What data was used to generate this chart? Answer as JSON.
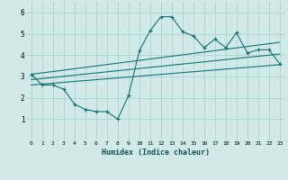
{
  "xlabel": "Humidex (Indice chaleur)",
  "ylabel": "",
  "xlim": [
    -0.5,
    23.5
  ],
  "ylim": [
    0.0,
    6.5
  ],
  "xticks": [
    0,
    1,
    2,
    3,
    4,
    5,
    6,
    7,
    8,
    9,
    10,
    11,
    12,
    13,
    14,
    15,
    16,
    17,
    18,
    19,
    20,
    21,
    22,
    23
  ],
  "yticks": [
    1,
    2,
    3,
    4,
    5,
    6
  ],
  "bg_color": "#d0eaea",
  "grid_color": "#b8d4d4",
  "line_color": "#1a7070",
  "main_line_x": [
    0,
    1,
    2,
    3,
    4,
    5,
    6,
    7,
    8,
    9,
    10,
    11,
    12,
    13,
    14,
    15,
    16,
    17,
    18,
    19,
    20,
    21,
    22,
    23
  ],
  "main_line_y": [
    3.1,
    2.6,
    2.6,
    2.4,
    1.7,
    1.45,
    1.35,
    1.35,
    1.0,
    2.1,
    4.2,
    5.15,
    5.8,
    5.8,
    5.1,
    4.9,
    4.35,
    4.75,
    4.35,
    5.05,
    4.1,
    4.25,
    4.25,
    3.6
  ],
  "upper_line_x": [
    0,
    23
  ],
  "upper_line_y": [
    3.1,
    4.6
  ],
  "lower_line_x": [
    0,
    23
  ],
  "lower_line_y": [
    2.6,
    3.55
  ],
  "mid_line_x": [
    0,
    23
  ],
  "mid_line_y": [
    2.85,
    4.05
  ]
}
